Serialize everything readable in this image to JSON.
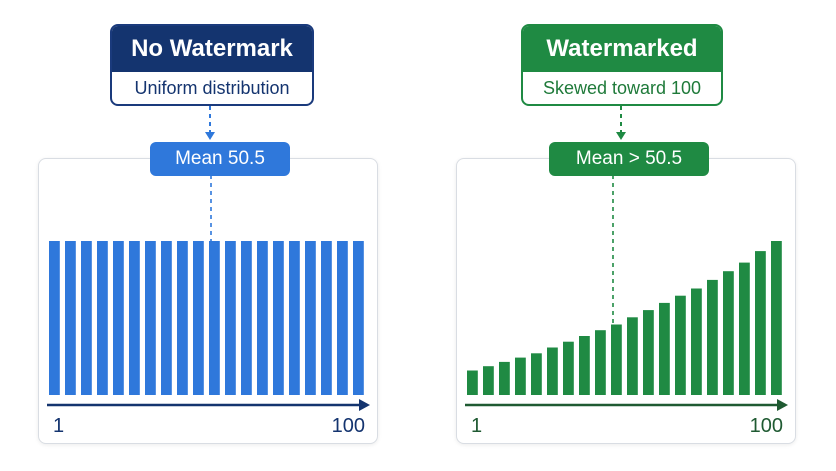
{
  "left": {
    "title": "No Watermark",
    "subtitle": "Uniform distribution",
    "mean_label": "Mean 50.5",
    "color": "#2f78db",
    "axis_color": "#14346f"
  },
  "right": {
    "title": "Watermarked",
    "subtitle": "Skewed toward 100",
    "mean_label": "Mean > 50.5",
    "color": "#1f8a43",
    "axis_color": "#1f5a32"
  },
  "chart_data": [
    {
      "type": "bar",
      "title": "No Watermark",
      "subtitle": "Uniform distribution",
      "annotation": "Mean 50.5",
      "x_tick_labels": [
        "1",
        "100"
      ],
      "xlim": [
        1,
        100
      ],
      "values": [
        1,
        1,
        1,
        1,
        1,
        1,
        1,
        1,
        1,
        1,
        1,
        1,
        1,
        1,
        1,
        1,
        1,
        1,
        1,
        1
      ],
      "grid": false
    },
    {
      "type": "bar",
      "title": "Watermarked",
      "subtitle": "Skewed toward 100",
      "annotation": "Mean > 50.5",
      "x_tick_labels": [
        "1",
        "100"
      ],
      "xlim": [
        1,
        100
      ],
      "values": [
        0.17,
        0.2,
        0.23,
        0.26,
        0.29,
        0.33,
        0.37,
        0.41,
        0.45,
        0.49,
        0.54,
        0.59,
        0.64,
        0.69,
        0.74,
        0.8,
        0.86,
        0.92,
        1.0,
        1.07
      ],
      "grid": false
    }
  ]
}
